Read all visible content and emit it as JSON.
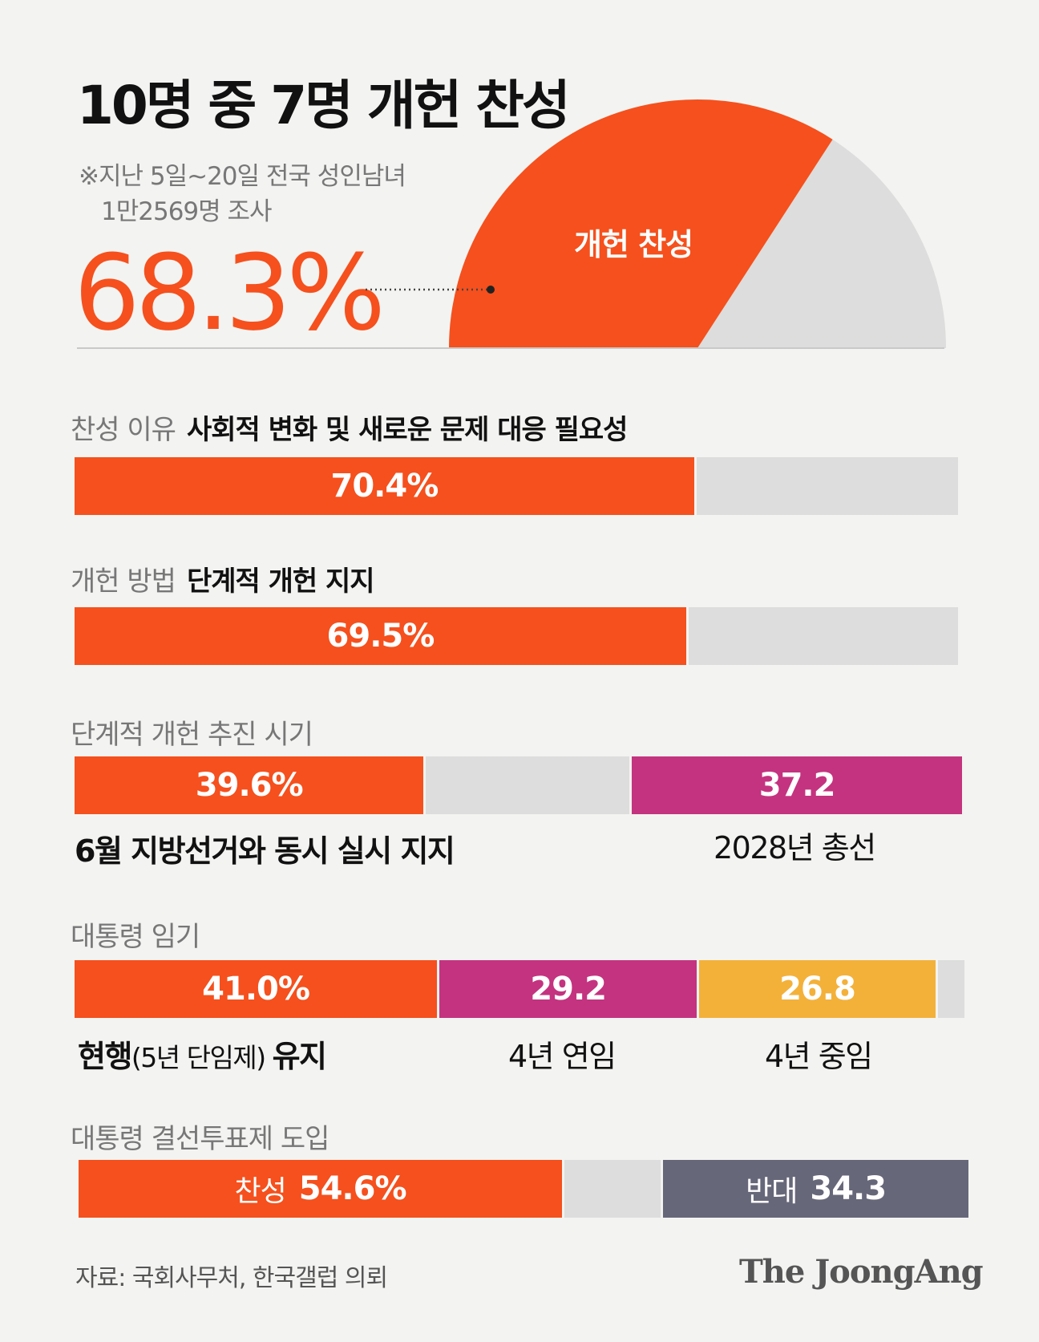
{
  "title": "10명 중 7명 개헌 찬성",
  "note_line1": "※지난 5일~20일 전국 성인남녀",
  "note_line2": "1만2569명 조사",
  "headline_value": "68.3%",
  "colors": {
    "orange": "#f5501d",
    "gray": "#dcdddc",
    "magenta": "#c4337f",
    "yellow": "#f3b13a",
    "slate": "#67677a"
  },
  "chart_data": [
    {
      "type": "pie",
      "shape": "half-donut gauge",
      "slices": [
        {
          "label": "개헌 찬성",
          "value": 68.3,
          "color": "#f5501d"
        },
        {
          "label": "",
          "value": 31.7,
          "color": "#dcdddc"
        }
      ],
      "display_value": "68.3%"
    },
    {
      "type": "bar",
      "orientation": "horizontal-stacked",
      "title_prefix": "찬성 이유",
      "title_highlight": "사회적 변화 및 새로운 문제 대응 필요성",
      "segments": [
        {
          "value": 70.4,
          "label": "70.4%",
          "color": "#f5501d"
        },
        {
          "value": 29.6,
          "label": "",
          "color": "#dcdddc"
        }
      ]
    },
    {
      "type": "bar",
      "orientation": "horizontal-stacked",
      "title_prefix": "개헌 방법",
      "title_highlight": "단계적 개헌 지지",
      "segments": [
        {
          "value": 69.5,
          "label": "69.5%",
          "color": "#f5501d"
        },
        {
          "value": 30.5,
          "label": "",
          "color": "#dcdddc"
        }
      ]
    },
    {
      "type": "bar",
      "orientation": "horizontal-stacked",
      "title_prefix": "단계적 개헌 추진 시기",
      "title_highlight": "",
      "segments": [
        {
          "value": 39.6,
          "label": "39.6%",
          "color": "#f5501d",
          "caption": "6월 지방선거와 동시 실시 지지",
          "caption_bold": true
        },
        {
          "value": 23.2,
          "label": "",
          "color": "#dcdddc"
        },
        {
          "value": 37.2,
          "label": "37.2",
          "color": "#c4337f",
          "caption": "2028년 총선"
        }
      ]
    },
    {
      "type": "bar",
      "orientation": "horizontal-stacked",
      "title_prefix": "대통령 임기",
      "title_highlight": "",
      "segments": [
        {
          "value": 41.0,
          "label": "41.0%",
          "color": "#f5501d",
          "caption_bold_a": "현행",
          "caption_plain": "(5년 단임제) ",
          "caption_bold_b": "유지"
        },
        {
          "value": 29.2,
          "label": "29.2",
          "color": "#c4337f",
          "caption": "4년 연임"
        },
        {
          "value": 26.8,
          "label": "26.8",
          "color": "#f3b13a",
          "caption": "4년 중임"
        },
        {
          "value": 3.0,
          "label": "",
          "color": "#dcdddc"
        }
      ]
    },
    {
      "type": "bar",
      "orientation": "horizontal-stacked",
      "title_prefix": "대통령 결선투표제 도입",
      "title_highlight": "",
      "segments": [
        {
          "value": 54.6,
          "prefix": "찬성",
          "label": "54.6%",
          "color": "#f5501d"
        },
        {
          "value": 11.1,
          "label": "",
          "color": "#dcdddc"
        },
        {
          "value": 34.3,
          "prefix": "반대",
          "label": "34.3",
          "color": "#67677a"
        }
      ]
    }
  ],
  "source": "자료: 국회사무처, 한국갤럽 의뢰",
  "brand": "The JoongAng"
}
